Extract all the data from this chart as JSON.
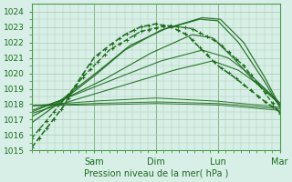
{
  "xlabel": "Pression niveau de la mer( hPa )",
  "ylim": [
    1015.0,
    1024.5
  ],
  "yticks": [
    1015,
    1016,
    1017,
    1018,
    1019,
    1020,
    1021,
    1022,
    1023,
    1024
  ],
  "bg_color": "#d8efe8",
  "grid_color": "#aaccaa",
  "line_color": "#1a6b1a",
  "day_labels": [
    "Sam",
    "Dim",
    "Lun",
    "Mar"
  ],
  "day_hours": [
    24,
    48,
    72,
    96
  ],
  "series": [
    {
      "xp": [
        0,
        6,
        12,
        18,
        24,
        30,
        36,
        42,
        48,
        54,
        60,
        66,
        72,
        78,
        84,
        90,
        96
      ],
      "yp": [
        1015.2,
        1016.5,
        1017.8,
        1019.5,
        1021.0,
        1021.8,
        1022.5,
        1023.0,
        1023.2,
        1023.0,
        1022.5,
        1021.5,
        1020.5,
        1019.8,
        1019.0,
        1018.2,
        1017.5
      ],
      "ls": "--",
      "marker": "+",
      "lw": 1.2,
      "ms": 3.0
    },
    {
      "xp": [
        0,
        6,
        12,
        20,
        30,
        42,
        52,
        62,
        72,
        82,
        90,
        96
      ],
      "yp": [
        1015.8,
        1017.0,
        1018.2,
        1019.8,
        1021.5,
        1022.7,
        1023.1,
        1022.9,
        1022.0,
        1020.5,
        1018.8,
        1017.4
      ],
      "ls": "--",
      "marker": "+",
      "lw": 1.0,
      "ms": 2.5
    },
    {
      "xp": [
        0,
        10,
        24,
        36,
        50,
        65,
        72,
        80,
        90,
        96
      ],
      "yp": [
        1016.8,
        1018.0,
        1019.8,
        1021.5,
        1022.8,
        1023.5,
        1023.4,
        1022.0,
        1019.5,
        1017.8
      ],
      "ls": "-",
      "marker": null,
      "lw": 0.9,
      "ms": 0
    },
    {
      "xp": [
        0,
        10,
        24,
        38,
        52,
        66,
        73,
        82,
        90,
        96
      ],
      "yp": [
        1017.2,
        1018.1,
        1019.9,
        1021.8,
        1022.9,
        1023.6,
        1023.5,
        1022.0,
        1019.8,
        1017.9
      ],
      "ls": "-",
      "marker": null,
      "lw": 0.9,
      "ms": 0
    },
    {
      "xp": [
        0,
        12,
        28,
        46,
        62,
        70,
        78,
        86,
        96
      ],
      "yp": [
        1017.5,
        1018.3,
        1019.6,
        1021.3,
        1022.5,
        1022.3,
        1021.0,
        1019.5,
        1018.0
      ],
      "ls": "-",
      "marker": null,
      "lw": 0.85,
      "ms": 0
    },
    {
      "xp": [
        0,
        12,
        30,
        50,
        66,
        76,
        84,
        96
      ],
      "yp": [
        1017.6,
        1018.3,
        1019.5,
        1020.8,
        1021.5,
        1021.0,
        1020.0,
        1018.1
      ],
      "ls": "-",
      "marker": null,
      "lw": 0.8,
      "ms": 0
    },
    {
      "xp": [
        0,
        15,
        35,
        55,
        70,
        80,
        90,
        96
      ],
      "yp": [
        1017.4,
        1018.2,
        1019.2,
        1020.2,
        1020.8,
        1020.2,
        1019.0,
        1018.0
      ],
      "ls": "-",
      "marker": null,
      "lw": 0.8,
      "ms": 0
    },
    {
      "xp": [
        0,
        24,
        48,
        72,
        96
      ],
      "yp": [
        1017.9,
        1018.2,
        1018.4,
        1018.2,
        1017.8
      ],
      "ls": "-",
      "marker": null,
      "lw": 0.7,
      "ms": 0
    },
    {
      "xp": [
        0,
        24,
        48,
        72,
        96
      ],
      "yp": [
        1017.9,
        1018.05,
        1018.15,
        1018.05,
        1017.7
      ],
      "ls": "-",
      "marker": null,
      "lw": 0.7,
      "ms": 0
    },
    {
      "xp": [
        0,
        24,
        48,
        72,
        96
      ],
      "yp": [
        1017.9,
        1017.95,
        1018.05,
        1017.95,
        1017.6
      ],
      "ls": "-",
      "marker": null,
      "lw": 0.65,
      "ms": 0
    }
  ]
}
